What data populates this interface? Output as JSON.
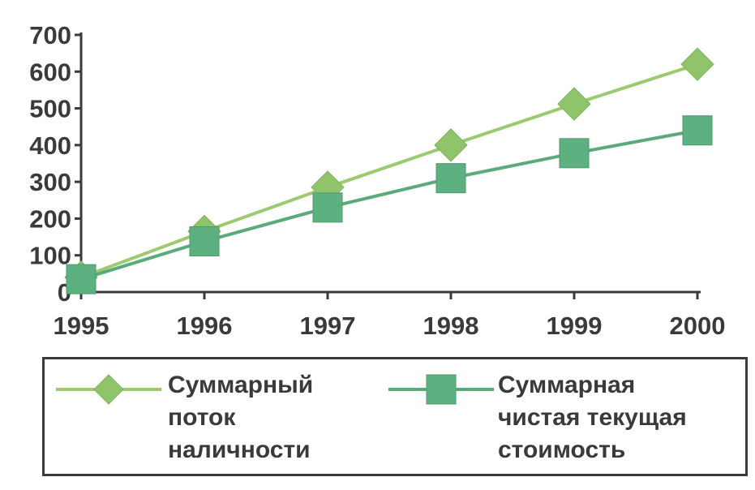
{
  "chart_data": {
    "type": "line",
    "x": [
      "1995",
      "1996",
      "1997",
      "1998",
      "1999",
      "2000"
    ],
    "yticks": [
      "0",
      "100",
      "200",
      "300",
      "400",
      "500",
      "600",
      "700"
    ],
    "ylim": [
      0,
      700
    ],
    "grid": false,
    "legend_position": "bottom",
    "series": [
      {
        "name_lines": [
          "Суммарный",
          "поток",
          "наличности"
        ],
        "values": [
          40,
          165,
          285,
          400,
          512,
          620
        ],
        "marker": "diamond",
        "line_color": "#9dc96f",
        "marker_color": "#8fc46a"
      },
      {
        "name_lines": [
          "Суммарная",
          "чистая текущая",
          "стоимость"
        ],
        "values": [
          35,
          138,
          230,
          310,
          378,
          440
        ],
        "marker": "square",
        "line_color": "#5bab7a",
        "marker_color": "#5db080"
      }
    ]
  }
}
